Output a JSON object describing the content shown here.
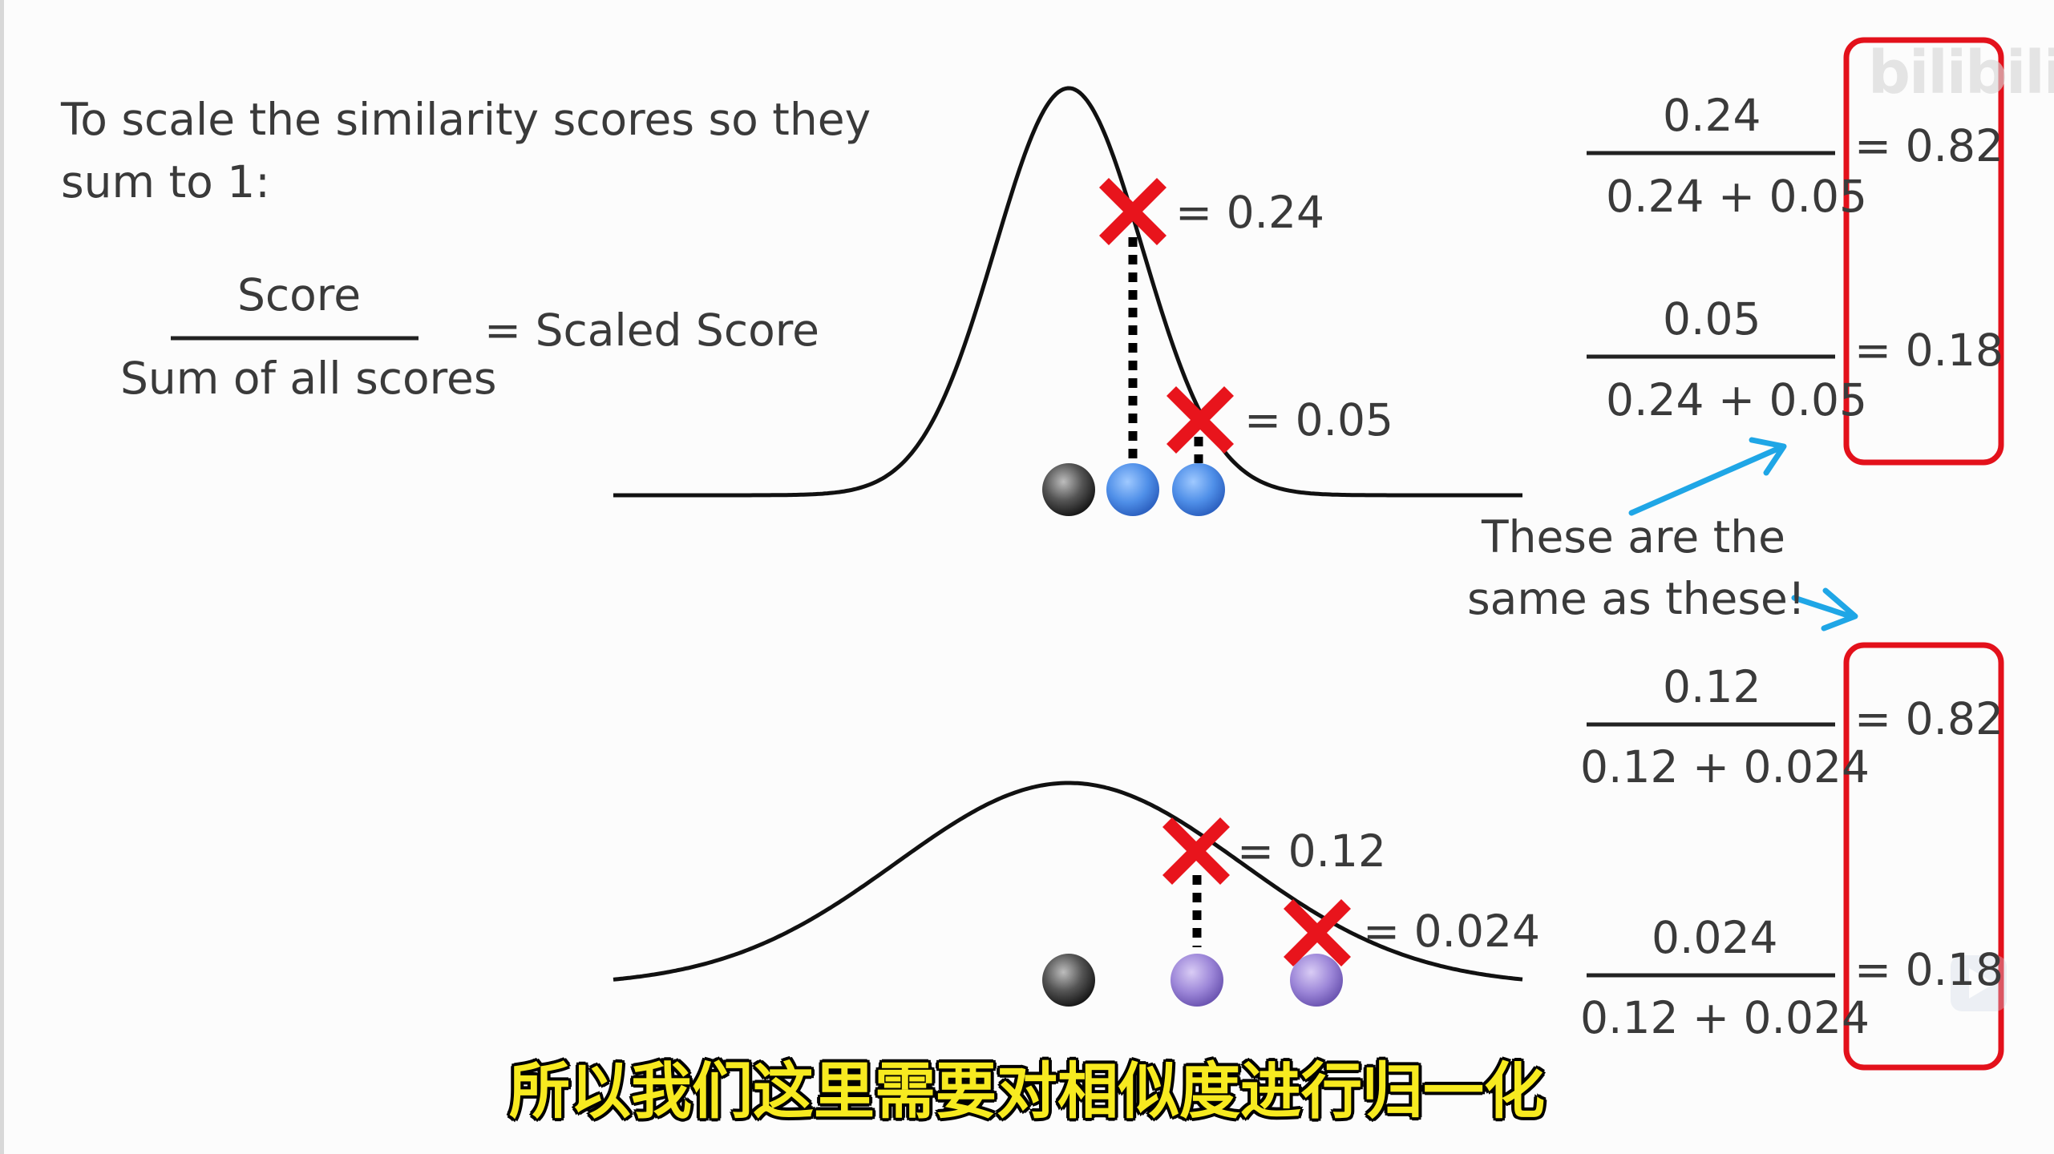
{
  "intro": {
    "line1": "To scale the similarity scores so they",
    "line2": "sum to 1:"
  },
  "formula": {
    "numerator": "Score",
    "denominator": "Sum of all scores",
    "result": "= Scaled Score"
  },
  "top_plot": {
    "point1_label": "= 0.24",
    "point2_label": "= 0.05"
  },
  "bottom_plot": {
    "point1_label": "= 0.12",
    "point2_label": "= 0.024"
  },
  "right_top": {
    "f1_num": "0.24",
    "f1_den": "0.24 + 0.05",
    "f1_res": "= 0.82",
    "f2_num": "0.05",
    "f2_den": "0.24 + 0.05",
    "f2_res": "= 0.18"
  },
  "note": {
    "line1": "These are the",
    "line2": "same as these!"
  },
  "right_bottom": {
    "f1_num": "0.12",
    "f1_den": "0.12 + 0.024",
    "f1_res": "= 0.82",
    "f2_num": "0.024",
    "f2_den": "0.12 + 0.024",
    "f2_res": "= 0.18"
  },
  "subtitle": "所以我们这里需要对相似度进行归一化",
  "watermark": "bilibili",
  "colors": {
    "red": "#e8141c",
    "blue_arrow": "#1fa6e6",
    "box_red": "#e3111b"
  }
}
